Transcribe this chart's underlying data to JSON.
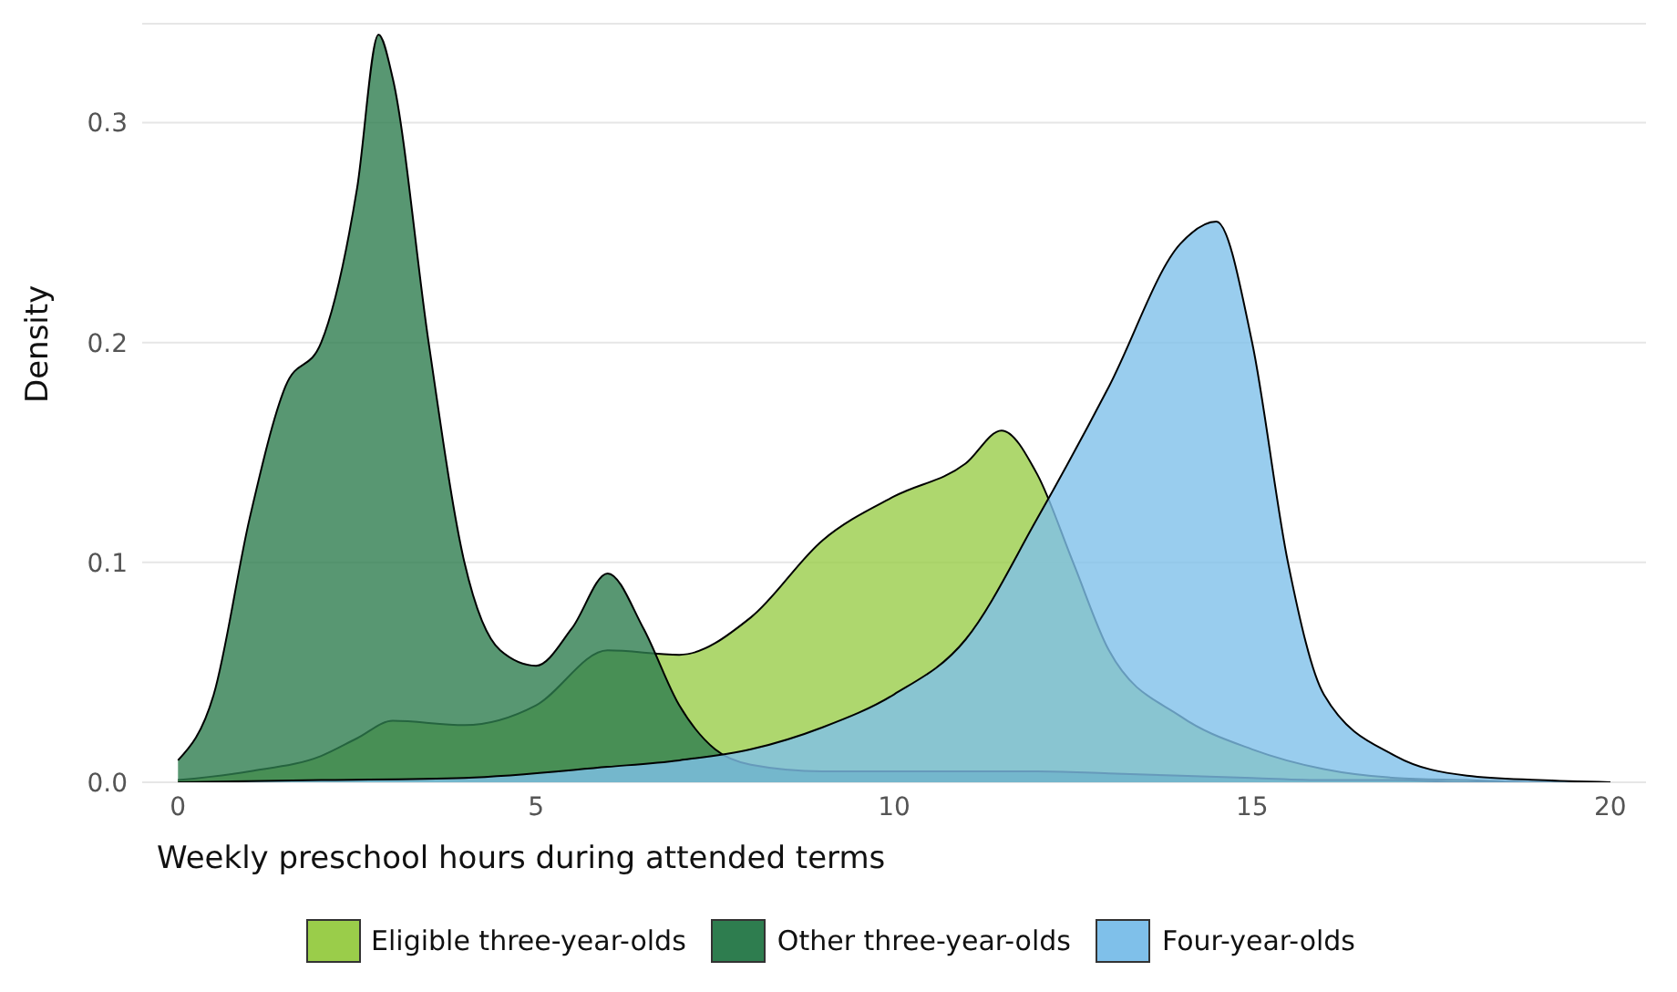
{
  "chart_data": {
    "type": "area",
    "xlabel": "Weekly preschool hours during attended terms",
    "ylabel": "Density",
    "xlim": [
      -0.5,
      20.5
    ],
    "xticks": [
      0,
      5,
      10,
      15,
      20
    ],
    "ylim": [
      0,
      0.345
    ],
    "yticks": [
      {
        "value": 0,
        "label": "0.0"
      },
      {
        "value": 0.1,
        "label": "0.1"
      },
      {
        "value": 0.2,
        "label": "0.2"
      },
      {
        "value": 0.3,
        "label": "0.3"
      }
    ],
    "grid": "y",
    "legend": "bottom",
    "series": [
      {
        "name": "Eligible three-year-olds",
        "color": "#9acd4a",
        "x": [
          0,
          1,
          2,
          2.5,
          3,
          4,
          5,
          6,
          7,
          8,
          9,
          10,
          11,
          11.5,
          12,
          12.5,
          13,
          14,
          15,
          16,
          17,
          18,
          19,
          20
        ],
        "values": [
          0.001,
          0.005,
          0.012,
          0.02,
          0.028,
          0.026,
          0.035,
          0.06,
          0.058,
          0.075,
          0.11,
          0.13,
          0.145,
          0.16,
          0.14,
          0.1,
          0.06,
          0.03,
          0.015,
          0.006,
          0.002,
          0.001,
          0,
          0
        ]
      },
      {
        "name": "Other three-year-olds",
        "color": "#2e7d4f",
        "x": [
          0,
          0.5,
          1,
          1.5,
          2,
          2.5,
          2.8,
          3,
          3.5,
          4,
          4.5,
          5,
          5.5,
          6,
          6.5,
          7,
          7.5,
          8,
          9,
          10,
          11,
          12,
          13,
          14,
          15,
          16,
          17,
          18,
          19,
          20
        ],
        "values": [
          0.01,
          0.04,
          0.12,
          0.18,
          0.2,
          0.27,
          0.34,
          0.32,
          0.2,
          0.1,
          0.06,
          0.053,
          0.07,
          0.095,
          0.07,
          0.035,
          0.015,
          0.008,
          0.005,
          0.005,
          0.005,
          0.005,
          0.004,
          0.003,
          0.002,
          0.001,
          0.001,
          0,
          0,
          0
        ]
      },
      {
        "name": "Four-year-olds",
        "color": "#7fc0ea",
        "x": [
          0,
          2,
          4,
          6,
          7,
          8,
          9,
          10,
          11,
          12,
          13,
          14,
          14.5,
          15,
          15.5,
          16,
          17,
          18,
          19,
          20
        ],
        "values": [
          0,
          0.001,
          0.002,
          0.007,
          0.01,
          0.015,
          0.025,
          0.04,
          0.065,
          0.12,
          0.18,
          0.245,
          0.255,
          0.2,
          0.1,
          0.04,
          0.012,
          0.003,
          0.001,
          0
        ]
      }
    ]
  }
}
